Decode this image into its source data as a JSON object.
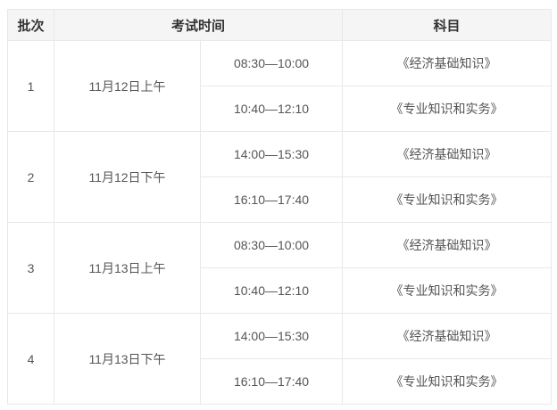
{
  "colors": {
    "header_bg": "#f5f5f5",
    "border_outer": "#e0e0e0",
    "border_inner": "#e8e8e8",
    "header_text": "#333333",
    "body_text": "#555555"
  },
  "table": {
    "headers": {
      "batch": "批次",
      "time": "考试时间",
      "subject": "科目"
    },
    "rows": [
      {
        "batch": "1",
        "date": "11月12日上午",
        "sessions": [
          {
            "time": "08:30—10:00",
            "subject": "《经济基础知识》"
          },
          {
            "time": "10:40—12:10",
            "subject": "《专业知识和实务》"
          }
        ]
      },
      {
        "batch": "2",
        "date": "11月12日下午",
        "sessions": [
          {
            "time": "14:00—15:30",
            "subject": "《经济基础知识》"
          },
          {
            "time": "16:10—17:40",
            "subject": "《专业知识和实务》"
          }
        ]
      },
      {
        "batch": "3",
        "date": "11月13日上午",
        "sessions": [
          {
            "time": "08:30—10:00",
            "subject": "《经济基础知识》"
          },
          {
            "time": "10:40—12:10",
            "subject": "《专业知识和实务》"
          }
        ]
      },
      {
        "batch": "4",
        "date": "11月13日下午",
        "sessions": [
          {
            "time": "14:00—15:30",
            "subject": "《经济基础知识》"
          },
          {
            "time": "16:10—17:40",
            "subject": "《专业知识和实务》"
          }
        ]
      }
    ]
  }
}
